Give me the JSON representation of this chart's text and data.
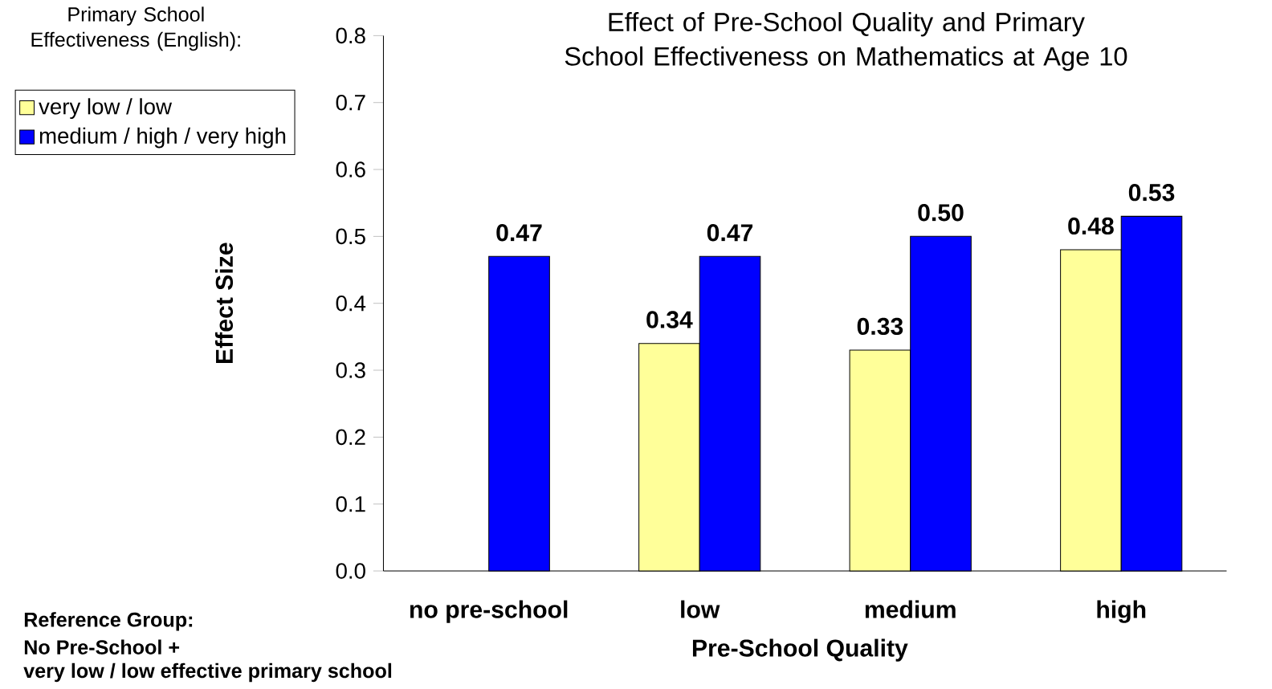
{
  "chart_data": {
    "type": "bar",
    "title": "Effect of Pre-School Quality and Primary School Effectiveness on Mathematics at Age 10",
    "xlabel": "Pre-School Quality",
    "ylabel": "Effect Size",
    "legend_title": "Primary School Effectiveness (English):",
    "categories": [
      "no pre-school",
      "low",
      "medium",
      "high"
    ],
    "series": [
      {
        "name": "very low / low",
        "color": "#ffff99",
        "values": [
          null,
          0.34,
          0.33,
          0.48
        ],
        "value_labels": [
          null,
          "0.34",
          "0.33",
          "0.48"
        ]
      },
      {
        "name": "medium / high / very high",
        "color": "#0000ff",
        "values": [
          0.47,
          0.47,
          0.5,
          0.53
        ],
        "value_labels": [
          "0.47",
          "0.47",
          "0.50",
          "0.53"
        ]
      }
    ],
    "ylim": [
      0,
      0.8
    ],
    "yticks": [
      {
        "value": 0,
        "label": "0.0"
      },
      {
        "value": 0.1,
        "label": "0.1"
      },
      {
        "value": 0.2,
        "label": "0.2"
      },
      {
        "value": 0.3,
        "label": "0.3"
      },
      {
        "value": 0.4,
        "label": "0.4"
      },
      {
        "value": 0.5,
        "label": "0.5"
      },
      {
        "value": 0.6,
        "label": "0.6"
      },
      {
        "value": 0.7,
        "label": "0.7"
      },
      {
        "value": 0.8,
        "label": "0.8"
      }
    ],
    "grid": false,
    "legend": "top left",
    "annotations": [
      "Reference Group:",
      "No Pre-School +",
      "very low / low effective primary school"
    ]
  }
}
